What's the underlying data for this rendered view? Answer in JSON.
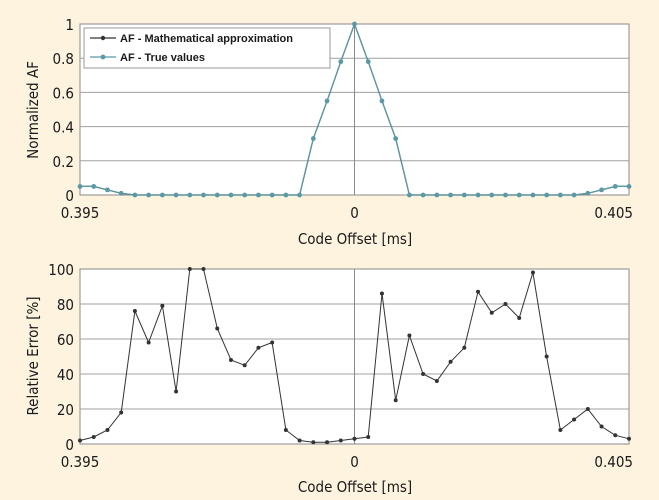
{
  "chart_data": [
    {
      "type": "line",
      "ylabel": "Normalized AF",
      "xlabel": "Code Offset [ms]",
      "x_tick_labels": [
        "0.395",
        "0",
        "0.405"
      ],
      "y_ticks": [
        0,
        0.2,
        0.4,
        0.6,
        0.8,
        1
      ],
      "ylim": [
        0,
        1
      ],
      "grid": true,
      "legend_position": "top-left",
      "series": [
        {
          "name": "AF - Mathematical approximation",
          "color": "#333333",
          "marker": "dot",
          "x": [
            -1.0,
            -0.95,
            -0.9,
            -0.85,
            -0.8,
            -0.75,
            -0.7,
            -0.65,
            -0.6,
            -0.55,
            -0.5,
            -0.45,
            -0.4,
            -0.35,
            -0.3,
            -0.25,
            -0.2,
            -0.15,
            -0.1,
            -0.05,
            0.0,
            0.05,
            0.1,
            0.15,
            0.2,
            0.25,
            0.3,
            0.35,
            0.4,
            0.45,
            0.5,
            0.55,
            0.6,
            0.65,
            0.7,
            0.75,
            0.8,
            0.85,
            0.9,
            0.95,
            1.0
          ],
          "values": [
            0.05,
            0.05,
            0.03,
            0.01,
            0.0,
            0.0,
            0.0,
            0.0,
            0.0,
            0.0,
            0.0,
            0.0,
            0.0,
            0.0,
            0.0,
            0.0,
            0.0,
            0.33,
            0.55,
            0.78,
            1.0,
            0.78,
            0.55,
            0.33,
            0.0,
            0.0,
            0.0,
            0.0,
            0.0,
            0.0,
            0.0,
            0.0,
            0.0,
            0.0,
            0.0,
            0.0,
            0.0,
            0.01,
            0.03,
            0.05,
            0.05
          ]
        },
        {
          "name": "AF - True values",
          "color": "#5a9aa6",
          "marker": "dot",
          "x": [
            -1.0,
            -0.95,
            -0.9,
            -0.85,
            -0.8,
            -0.75,
            -0.7,
            -0.65,
            -0.6,
            -0.55,
            -0.5,
            -0.45,
            -0.4,
            -0.35,
            -0.3,
            -0.25,
            -0.2,
            -0.15,
            -0.1,
            -0.05,
            0.0,
            0.05,
            0.1,
            0.15,
            0.2,
            0.25,
            0.3,
            0.35,
            0.4,
            0.45,
            0.5,
            0.55,
            0.6,
            0.65,
            0.7,
            0.75,
            0.8,
            0.85,
            0.9,
            0.95,
            1.0
          ],
          "values": [
            0.05,
            0.05,
            0.03,
            0.01,
            0.0,
            0.0,
            0.0,
            0.0,
            0.0,
            0.0,
            0.0,
            0.0,
            0.0,
            0.0,
            0.0,
            0.0,
            0.0,
            0.33,
            0.55,
            0.78,
            1.0,
            0.78,
            0.55,
            0.33,
            0.0,
            0.0,
            0.0,
            0.0,
            0.0,
            0.0,
            0.0,
            0.0,
            0.0,
            0.0,
            0.0,
            0.0,
            0.0,
            0.01,
            0.03,
            0.05,
            0.05
          ]
        }
      ]
    },
    {
      "type": "line",
      "ylabel": "Relative Error [%]",
      "xlabel": "Code Offset [ms]",
      "x_tick_labels": [
        "0.395",
        "0",
        "0.405"
      ],
      "y_ticks": [
        0,
        20,
        40,
        60,
        80,
        100
      ],
      "ylim": [
        0,
        100
      ],
      "grid": true,
      "series": [
        {
          "color": "#333333",
          "marker": "dot",
          "x": [
            -1.0,
            -0.95,
            -0.9,
            -0.85,
            -0.8,
            -0.75,
            -0.7,
            -0.65,
            -0.6,
            -0.55,
            -0.5,
            -0.45,
            -0.4,
            -0.35,
            -0.3,
            -0.25,
            -0.2,
            -0.15,
            -0.1,
            -0.05,
            0.0,
            0.05,
            0.1,
            0.15,
            0.2,
            0.25,
            0.3,
            0.35,
            0.4,
            0.45,
            0.5,
            0.55,
            0.6,
            0.65,
            0.7,
            0.75,
            0.8,
            0.85,
            0.9,
            0.95,
            1.0
          ],
          "values": [
            2,
            4,
            8,
            18,
            76,
            58,
            79,
            30,
            100,
            100,
            66,
            48,
            45,
            55,
            58,
            8,
            2,
            1,
            1,
            2,
            3,
            4,
            86,
            25,
            62,
            40,
            36,
            47,
            55,
            87,
            75,
            80,
            72,
            98,
            50,
            8,
            14,
            20,
            10,
            5,
            3
          ]
        }
      ]
    }
  ]
}
